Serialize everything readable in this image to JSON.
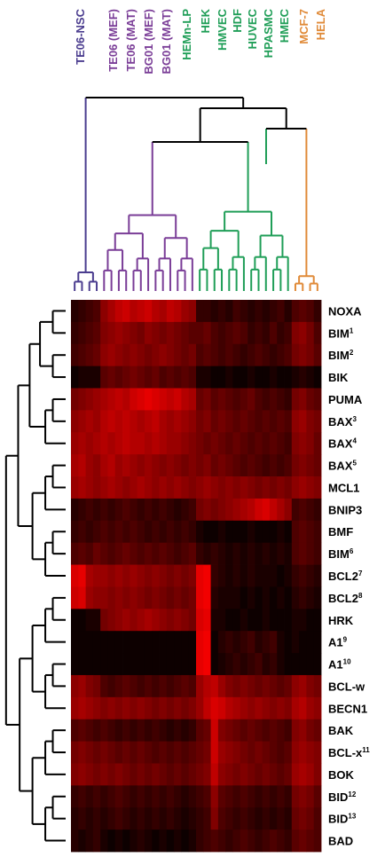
{
  "chart_data": {
    "type": "heatmap",
    "title": "",
    "xlabel": "",
    "ylabel": "",
    "color_scale": [
      "#000000",
      "#ff0000"
    ],
    "column_groups": [
      {
        "color": "#4b3d8f",
        "labels": [
          "TE06-NSC"
        ],
        "n_cols": 4
      },
      {
        "color": "#7a3d97",
        "labels": [
          "TE06 (MEF)",
          "TE06 (MAT)",
          "BG01 (MEF)",
          "BG01 (MAT)"
        ],
        "n_cols": 13
      },
      {
        "color": "#1f9e57",
        "labels": [
          "HEMn-LP",
          "HEK",
          "HMVEC",
          "HDF",
          "HUVEC",
          "HPASMC",
          "HMEC"
        ],
        "n_cols": 13
      },
      {
        "color": "#e08a38",
        "labels": [
          "MCF-7",
          "HELA"
        ],
        "n_cols": 4
      }
    ],
    "rows": [
      {
        "name": "NOXA",
        "sup": ""
      },
      {
        "name": "BIM",
        "sup": "1"
      },
      {
        "name": "BIM",
        "sup": "2"
      },
      {
        "name": "BIK",
        "sup": ""
      },
      {
        "name": "PUMA",
        "sup": ""
      },
      {
        "name": "BAX",
        "sup": "3"
      },
      {
        "name": "BAX",
        "sup": "4"
      },
      {
        "name": "BAX",
        "sup": "5"
      },
      {
        "name": "MCL1",
        "sup": ""
      },
      {
        "name": "BNIP3",
        "sup": ""
      },
      {
        "name": "BMF",
        "sup": ""
      },
      {
        "name": "BIM",
        "sup": "6"
      },
      {
        "name": "BCL2",
        "sup": "7"
      },
      {
        "name": "BCL2",
        "sup": "8"
      },
      {
        "name": "HRK",
        "sup": ""
      },
      {
        "name": "A1",
        "sup": "9"
      },
      {
        "name": "A1",
        "sup": "10"
      },
      {
        "name": "BCL-w",
        "sup": ""
      },
      {
        "name": "BECN1",
        "sup": ""
      },
      {
        "name": "BAK",
        "sup": ""
      },
      {
        "name": "BCL-x",
        "sup": "11"
      },
      {
        "name": "BOK",
        "sup": ""
      },
      {
        "name": "BID",
        "sup": "12"
      },
      {
        "name": "BID",
        "sup": "13"
      },
      {
        "name": "BAD",
        "sup": ""
      }
    ],
    "values": [
      [
        0.15,
        0.2,
        0.25,
        0.3,
        0.55,
        0.65,
        0.75,
        0.8,
        0.7,
        0.75,
        0.8,
        0.7,
        0.65,
        0.75,
        0.7,
        0.6,
        0.55,
        0.2,
        0.2,
        0.15,
        0.2,
        0.15,
        0.25,
        0.2,
        0.15,
        0.2,
        0.15,
        0.2,
        0.25,
        0.15,
        0.3,
        0.35,
        0.3,
        0.2
      ],
      [
        0.2,
        0.25,
        0.3,
        0.35,
        0.5,
        0.55,
        0.6,
        0.55,
        0.5,
        0.45,
        0.55,
        0.5,
        0.45,
        0.5,
        0.45,
        0.4,
        0.35,
        0.35,
        0.4,
        0.3,
        0.25,
        0.3,
        0.35,
        0.3,
        0.2,
        0.25,
        0.2,
        0.3,
        0.2,
        0.25,
        0.5,
        0.55,
        0.45,
        0.3
      ],
      [
        0.25,
        0.3,
        0.35,
        0.4,
        0.55,
        0.6,
        0.55,
        0.5,
        0.55,
        0.5,
        0.45,
        0.5,
        0.55,
        0.5,
        0.45,
        0.4,
        0.45,
        0.3,
        0.35,
        0.3,
        0.25,
        0.3,
        0.25,
        0.2,
        0.25,
        0.3,
        0.25,
        0.2,
        0.25,
        0.3,
        0.45,
        0.5,
        0.45,
        0.35
      ],
      [
        0.05,
        0.1,
        0.1,
        0.1,
        0.35,
        0.4,
        0.35,
        0.4,
        0.45,
        0.4,
        0.35,
        0.4,
        0.3,
        0.35,
        0.3,
        0.35,
        0.3,
        0.1,
        0.1,
        0.05,
        0.05,
        0.1,
        0.05,
        0.05,
        0.1,
        0.05,
        0.05,
        0.1,
        0.05,
        0.05,
        0.1,
        0.15,
        0.1,
        0.05
      ],
      [
        0.45,
        0.5,
        0.55,
        0.6,
        0.65,
        0.7,
        0.75,
        0.7,
        0.8,
        0.85,
        0.9,
        0.85,
        0.8,
        0.75,
        0.8,
        0.7,
        0.65,
        0.4,
        0.45,
        0.35,
        0.4,
        0.35,
        0.3,
        0.35,
        0.4,
        0.3,
        0.25,
        0.3,
        0.25,
        0.2,
        0.45,
        0.5,
        0.4,
        0.35
      ],
      [
        0.55,
        0.6,
        0.65,
        0.6,
        0.7,
        0.75,
        0.7,
        0.75,
        0.7,
        0.65,
        0.7,
        0.75,
        0.65,
        0.6,
        0.65,
        0.6,
        0.55,
        0.45,
        0.5,
        0.4,
        0.45,
        0.4,
        0.35,
        0.4,
        0.35,
        0.3,
        0.35,
        0.3,
        0.35,
        0.3,
        0.55,
        0.6,
        0.5,
        0.45
      ],
      [
        0.6,
        0.65,
        0.6,
        0.65,
        0.7,
        0.65,
        0.7,
        0.75,
        0.7,
        0.7,
        0.65,
        0.7,
        0.65,
        0.6,
        0.6,
        0.55,
        0.5,
        0.45,
        0.4,
        0.45,
        0.4,
        0.35,
        0.4,
        0.35,
        0.3,
        0.35,
        0.3,
        0.35,
        0.3,
        0.25,
        0.5,
        0.55,
        0.5,
        0.4
      ],
      [
        0.65,
        0.7,
        0.6,
        0.55,
        0.65,
        0.7,
        0.6,
        0.65,
        0.6,
        0.55,
        0.6,
        0.55,
        0.5,
        0.55,
        0.5,
        0.45,
        0.5,
        0.45,
        0.5,
        0.4,
        0.45,
        0.4,
        0.35,
        0.3,
        0.35,
        0.3,
        0.25,
        0.3,
        0.25,
        0.3,
        0.45,
        0.5,
        0.45,
        0.4
      ],
      [
        0.6,
        0.65,
        0.6,
        0.55,
        0.6,
        0.65,
        0.6,
        0.55,
        0.6,
        0.65,
        0.6,
        0.55,
        0.6,
        0.55,
        0.6,
        0.55,
        0.5,
        0.55,
        0.6,
        0.55,
        0.5,
        0.55,
        0.5,
        0.55,
        0.5,
        0.45,
        0.5,
        0.45,
        0.5,
        0.45,
        0.55,
        0.6,
        0.55,
        0.5
      ],
      [
        0.15,
        0.2,
        0.25,
        0.2,
        0.25,
        0.2,
        0.25,
        0.3,
        0.25,
        0.2,
        0.25,
        0.2,
        0.25,
        0.2,
        0.15,
        0.2,
        0.25,
        0.45,
        0.5,
        0.45,
        0.5,
        0.55,
        0.6,
        0.65,
        0.7,
        0.8,
        0.85,
        0.75,
        0.65,
        0.55,
        0.25,
        0.3,
        0.25,
        0.2
      ],
      [
        0.2,
        0.25,
        0.2,
        0.25,
        0.3,
        0.25,
        0.3,
        0.25,
        0.3,
        0.25,
        0.2,
        0.25,
        0.2,
        0.25,
        0.2,
        0.25,
        0.2,
        0.1,
        0.05,
        0.05,
        0.1,
        0.05,
        0.05,
        0.05,
        0.1,
        0.05,
        0.05,
        0.05,
        0.1,
        0.05,
        0.3,
        0.35,
        0.3,
        0.25
      ],
      [
        0.3,
        0.35,
        0.3,
        0.4,
        0.35,
        0.3,
        0.35,
        0.4,
        0.35,
        0.3,
        0.35,
        0.3,
        0.35,
        0.3,
        0.25,
        0.3,
        0.35,
        0.2,
        0.15,
        0.2,
        0.15,
        0.1,
        0.15,
        0.1,
        0.15,
        0.1,
        0.15,
        0.1,
        0.15,
        0.1,
        0.3,
        0.35,
        0.3,
        0.25
      ],
      [
        0.85,
        0.9,
        0.65,
        0.6,
        0.6,
        0.55,
        0.6,
        0.55,
        0.6,
        0.55,
        0.5,
        0.55,
        0.5,
        0.45,
        0.5,
        0.45,
        0.5,
        0.9,
        0.95,
        0.2,
        0.15,
        0.1,
        0.15,
        0.1,
        0.15,
        0.1,
        0.1,
        0.1,
        0.05,
        0.1,
        0.2,
        0.25,
        0.2,
        0.15
      ],
      [
        0.8,
        0.85,
        0.6,
        0.55,
        0.55,
        0.5,
        0.55,
        0.5,
        0.55,
        0.5,
        0.45,
        0.5,
        0.45,
        0.4,
        0.45,
        0.4,
        0.45,
        0.9,
        0.95,
        0.15,
        0.1,
        0.1,
        0.1,
        0.05,
        0.1,
        0.05,
        0.1,
        0.05,
        0.1,
        0.05,
        0.15,
        0.2,
        0.15,
        0.1
      ],
      [
        0.05,
        0.05,
        0.1,
        0.1,
        0.45,
        0.5,
        0.55,
        0.6,
        0.55,
        0.6,
        0.65,
        0.6,
        0.55,
        0.5,
        0.55,
        0.5,
        0.45,
        0.85,
        0.9,
        0.1,
        0.1,
        0.05,
        0.05,
        0.1,
        0.05,
        0.05,
        0.1,
        0.05,
        0.05,
        0.05,
        0.1,
        0.1,
        0.05,
        0.05
      ],
      [
        0.05,
        0.05,
        0.05,
        0.05,
        0.05,
        0.05,
        0.05,
        0.05,
        0.05,
        0.05,
        0.05,
        0.05,
        0.05,
        0.05,
        0.05,
        0.05,
        0.05,
        0.9,
        0.95,
        0.05,
        0.15,
        0.2,
        0.15,
        0.2,
        0.25,
        0.15,
        0.2,
        0.25,
        0.1,
        0.05,
        0.1,
        0.05,
        0.05,
        0.05
      ],
      [
        0.05,
        0.05,
        0.05,
        0.05,
        0.05,
        0.05,
        0.05,
        0.05,
        0.05,
        0.05,
        0.05,
        0.05,
        0.05,
        0.05,
        0.05,
        0.05,
        0.05,
        0.9,
        0.95,
        0.05,
        0.1,
        0.15,
        0.2,
        0.15,
        0.2,
        0.25,
        0.15,
        0.2,
        0.1,
        0.05,
        0.05,
        0.05,
        0.05,
        0.05
      ],
      [
        0.55,
        0.6,
        0.5,
        0.45,
        0.3,
        0.25,
        0.3,
        0.35,
        0.3,
        0.25,
        0.3,
        0.25,
        0.3,
        0.25,
        0.3,
        0.35,
        0.3,
        0.6,
        0.7,
        0.75,
        0.6,
        0.5,
        0.45,
        0.5,
        0.45,
        0.4,
        0.45,
        0.4,
        0.35,
        0.4,
        0.55,
        0.6,
        0.5,
        0.45
      ],
      [
        0.6,
        0.65,
        0.6,
        0.55,
        0.5,
        0.55,
        0.5,
        0.55,
        0.5,
        0.55,
        0.5,
        0.45,
        0.5,
        0.45,
        0.5,
        0.45,
        0.5,
        0.6,
        0.75,
        0.85,
        0.8,
        0.7,
        0.65,
        0.6,
        0.55,
        0.6,
        0.55,
        0.5,
        0.55,
        0.5,
        0.65,
        0.7,
        0.6,
        0.55
      ],
      [
        0.3,
        0.35,
        0.3,
        0.25,
        0.3,
        0.25,
        0.2,
        0.25,
        0.2,
        0.25,
        0.2,
        0.25,
        0.2,
        0.15,
        0.2,
        0.15,
        0.2,
        0.35,
        0.4,
        0.8,
        0.5,
        0.45,
        0.4,
        0.35,
        0.4,
        0.35,
        0.3,
        0.35,
        0.3,
        0.25,
        0.5,
        0.55,
        0.45,
        0.4
      ],
      [
        0.45,
        0.5,
        0.45,
        0.4,
        0.45,
        0.4,
        0.35,
        0.4,
        0.35,
        0.4,
        0.35,
        0.3,
        0.35,
        0.3,
        0.35,
        0.3,
        0.35,
        0.4,
        0.45,
        0.8,
        0.6,
        0.55,
        0.5,
        0.45,
        0.4,
        0.45,
        0.4,
        0.35,
        0.3,
        0.35,
        0.55,
        0.6,
        0.55,
        0.5
      ],
      [
        0.5,
        0.55,
        0.5,
        0.45,
        0.5,
        0.45,
        0.5,
        0.45,
        0.4,
        0.45,
        0.4,
        0.45,
        0.4,
        0.35,
        0.4,
        0.35,
        0.4,
        0.45,
        0.5,
        0.75,
        0.55,
        0.5,
        0.45,
        0.5,
        0.45,
        0.4,
        0.45,
        0.4,
        0.35,
        0.4,
        0.6,
        0.65,
        0.6,
        0.5
      ],
      [
        0.2,
        0.25,
        0.2,
        0.25,
        0.2,
        0.25,
        0.3,
        0.25,
        0.2,
        0.25,
        0.2,
        0.25,
        0.2,
        0.25,
        0.2,
        0.15,
        0.2,
        0.25,
        0.3,
        0.55,
        0.35,
        0.3,
        0.25,
        0.3,
        0.25,
        0.2,
        0.25,
        0.2,
        0.25,
        0.2,
        0.45,
        0.5,
        0.45,
        0.35
      ],
      [
        0.15,
        0.2,
        0.15,
        0.2,
        0.15,
        0.2,
        0.25,
        0.2,
        0.15,
        0.2,
        0.15,
        0.2,
        0.15,
        0.2,
        0.15,
        0.1,
        0.15,
        0.2,
        0.25,
        0.5,
        0.3,
        0.25,
        0.2,
        0.25,
        0.2,
        0.15,
        0.2,
        0.15,
        0.2,
        0.15,
        0.4,
        0.45,
        0.4,
        0.3
      ],
      [
        0.15,
        0.1,
        0.15,
        0.2,
        0.1,
        0.05,
        0.1,
        0.05,
        0.1,
        0.15,
        0.1,
        0.05,
        0.1,
        0.05,
        0.1,
        0.05,
        0.1,
        0.2,
        0.25,
        0.3,
        0.25,
        0.2,
        0.25,
        0.3,
        0.25,
        0.2,
        0.25,
        0.3,
        0.25,
        0.2,
        0.35,
        0.4,
        0.35,
        0.3
      ]
    ]
  }
}
